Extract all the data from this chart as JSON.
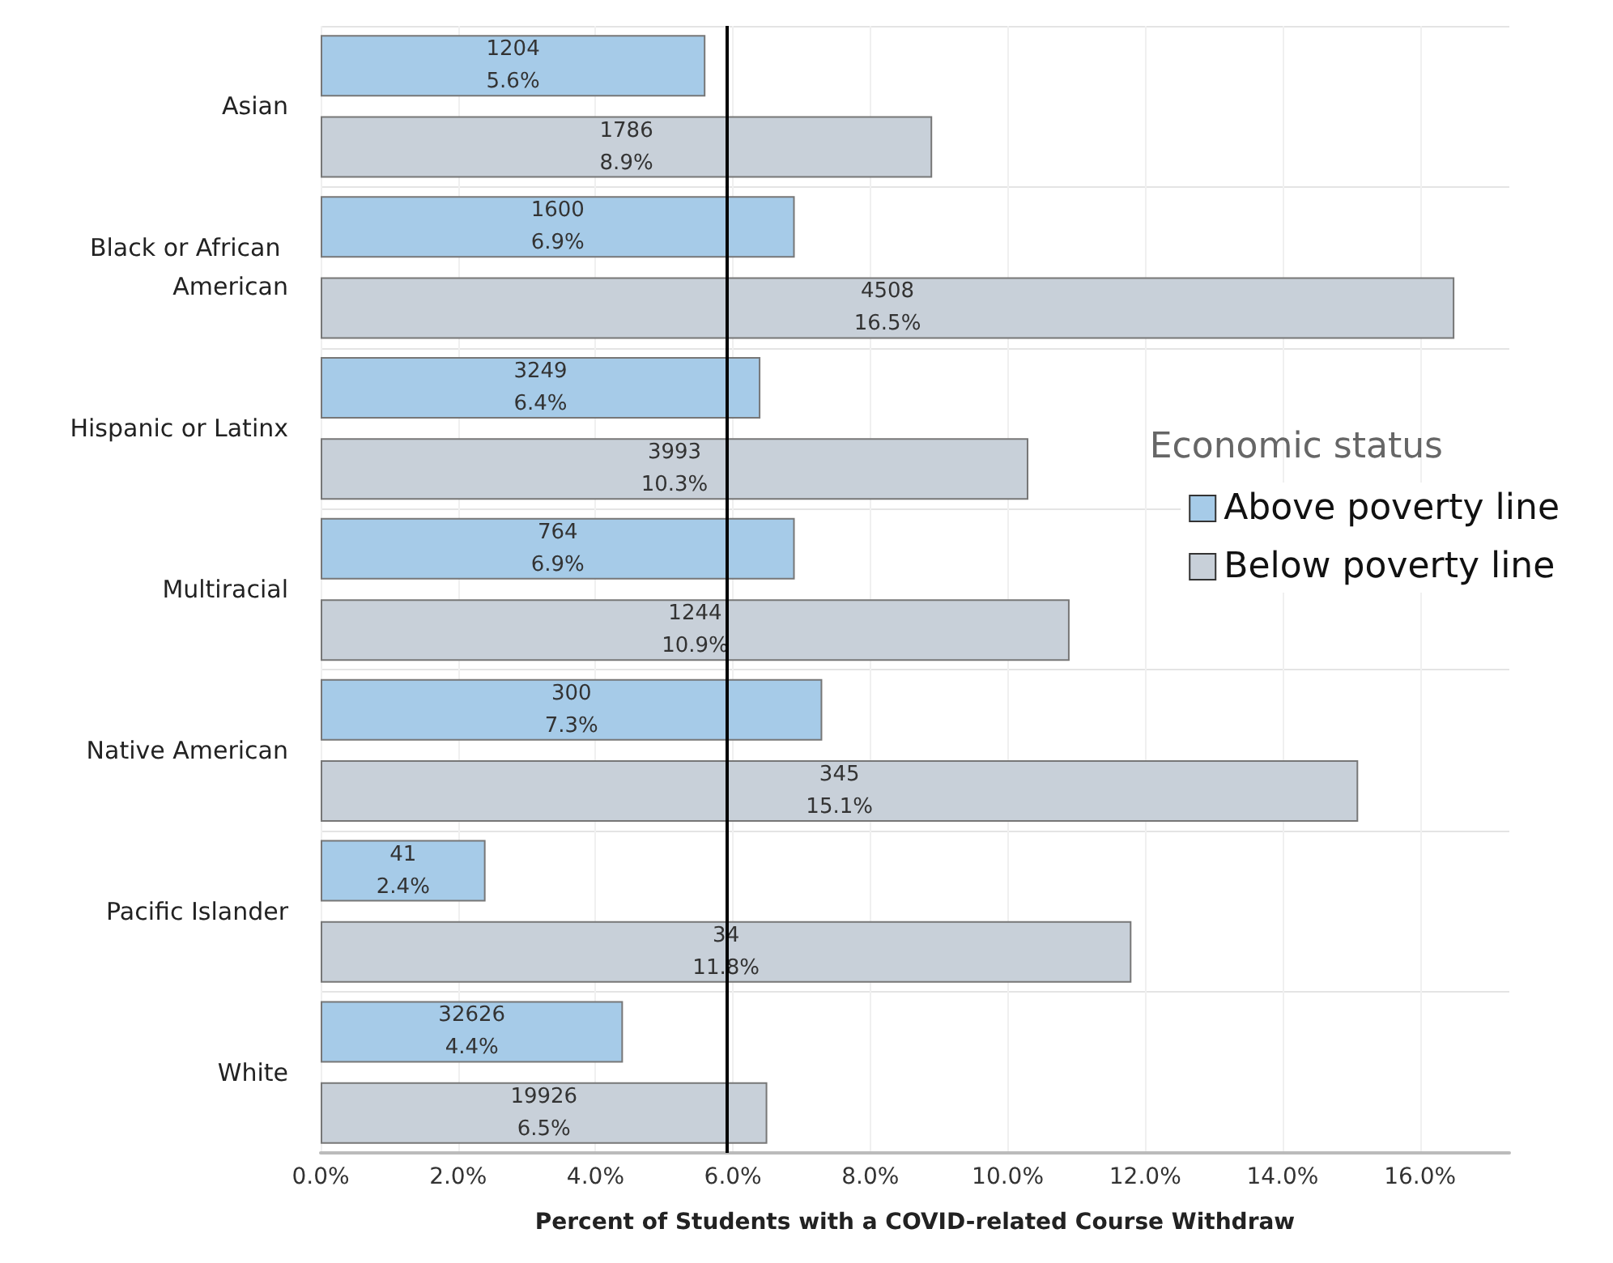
{
  "chart_data": {
    "type": "bar",
    "orientation": "horizontal",
    "xlabel": "Percent of Students with a COVID-related Course Withdraw",
    "legend_title": "Economic status",
    "legend": "right",
    "categories": [
      "Asian",
      "Black or African American",
      "Hispanic or Latinx",
      "Multiracial",
      "Native American",
      "Pacific Islander",
      "White"
    ],
    "series": [
      {
        "name": "Above poverty line",
        "color": "#a6cbe8",
        "values": [
          5.6,
          6.9,
          6.4,
          6.9,
          7.3,
          2.4,
          4.4
        ],
        "value_labels": [
          "1204\n5.6%",
          "1600\n6.9%",
          "3249\n6.4%",
          "764\n6.9%",
          "300\n7.3%",
          "41\n2.4%",
          "32626\n4.4%"
        ]
      },
      {
        "name": "Below poverty line",
        "color": "#c8d0d9",
        "values": [
          8.9,
          16.5,
          10.3,
          10.9,
          15.1,
          11.8,
          6.5
        ],
        "value_labels": [
          "1786\n8.9%",
          "4508\n16.5%",
          "3993\n10.3%",
          "1244\n10.9%",
          "345\n15.1%",
          "34\n11.8%",
          "19926\n6.5%"
        ]
      }
    ],
    "xlim": [
      0,
      17.3
    ],
    "xticks": [
      {
        "value": 0,
        "label": "0.0%"
      },
      {
        "value": 2,
        "label": "2.0%"
      },
      {
        "value": 4,
        "label": "4.0%"
      },
      {
        "value": 6,
        "label": "6.0%"
      },
      {
        "value": 8,
        "label": "8.0%"
      },
      {
        "value": 10,
        "label": "10.0%"
      },
      {
        "value": 12,
        "label": "12.0%"
      },
      {
        "value": 14,
        "label": "14.0%"
      },
      {
        "value": 16,
        "label": "16.0%"
      }
    ],
    "ref_lines": [
      {
        "axis": "x",
        "value": 5.9,
        "color": "#000000"
      }
    ],
    "grid": true
  }
}
